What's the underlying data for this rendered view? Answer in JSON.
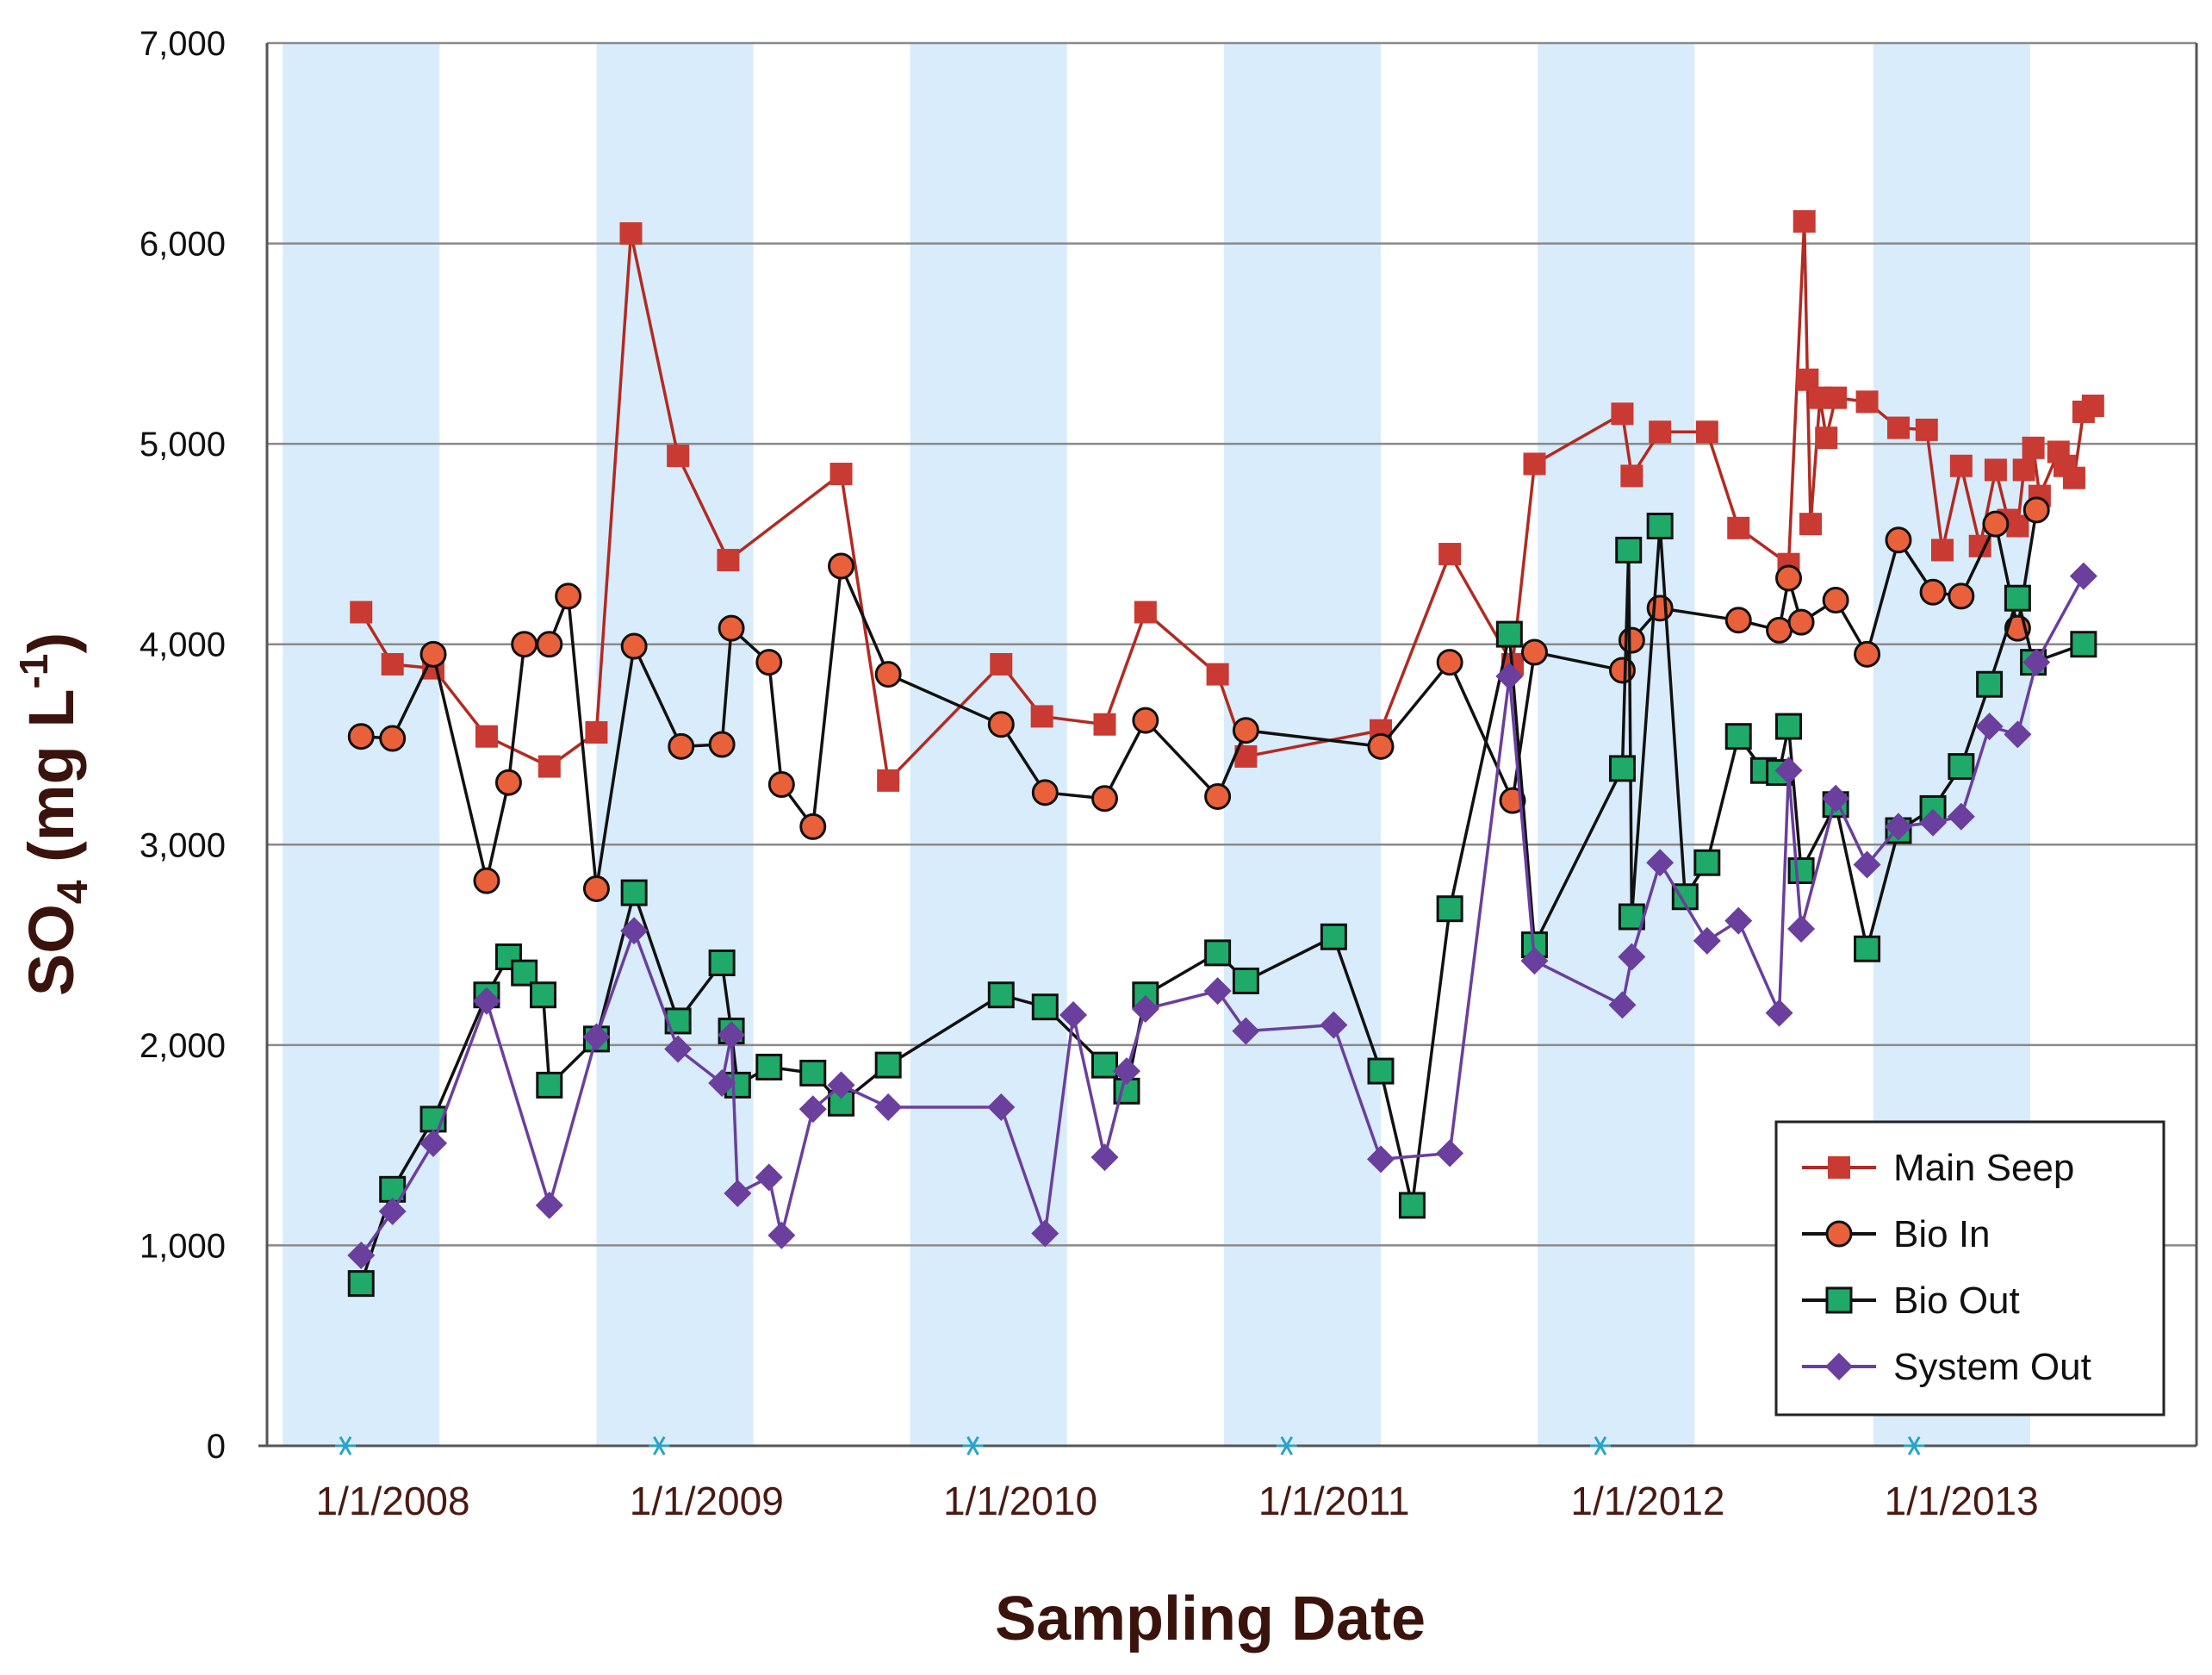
{
  "chart_data": {
    "type": "line",
    "title": "",
    "ylabel": {
      "main": "SO",
      "sub": "4",
      "unit": " (mg L",
      "sup": "-1",
      "close": ")"
    },
    "xlabel": "Sampling Date",
    "ylim": [
      0,
      7000
    ],
    "yticks": [
      0,
      1000,
      2000,
      3000,
      4000,
      5000,
      6000,
      7000
    ],
    "ytick_labels": [
      "0",
      "1,000",
      "2,000",
      "3,000",
      "4,000",
      "5,000",
      "6,000",
      "7,000"
    ],
    "xlim": [
      2007.75,
      2013.9
    ],
    "xticks": [
      2008,
      2009,
      2010,
      2011,
      2012,
      2013
    ],
    "xtick_labels": [
      "1/1/2008",
      "1/1/2009",
      "1/1/2010",
      "1/1/2011",
      "1/1/2012",
      "1/1/2013"
    ],
    "shaded_periods": [
      [
        2007.8,
        2008.3
      ],
      [
        2008.8,
        2009.3
      ],
      [
        2009.8,
        2010.3
      ],
      [
        2010.8,
        2011.3
      ],
      [
        2011.8,
        2012.3
      ],
      [
        2012.87,
        2013.37
      ]
    ],
    "gridlines": "horizontal",
    "legend_position": "bottom-right",
    "colors": {
      "shade": "#d9ecfb",
      "grid": "#8a8a8a",
      "axis": "#555555",
      "marker_star": "#2aa3c6"
    },
    "series": [
      {
        "name": "Main Seep",
        "color": "#b22a22",
        "marker": "square",
        "marker_fill": "#c83a32",
        "points": [
          [
            2008.05,
            4160
          ],
          [
            2008.15,
            3900
          ],
          [
            2008.28,
            3880
          ],
          [
            2008.45,
            3540
          ],
          [
            2008.65,
            3390
          ],
          [
            2008.8,
            3560
          ],
          [
            2008.91,
            6050
          ],
          [
            2009.06,
            4940
          ],
          [
            2009.22,
            4420
          ],
          [
            2009.58,
            4850
          ],
          [
            2009.73,
            3320
          ],
          [
            2010.09,
            3900
          ],
          [
            2010.22,
            3640
          ],
          [
            2010.42,
            3600
          ],
          [
            2010.55,
            4160
          ],
          [
            2010.78,
            3850
          ],
          [
            2010.87,
            3440
          ],
          [
            2011.3,
            3570
          ],
          [
            2011.52,
            4450
          ],
          [
            2011.72,
            3900
          ],
          [
            2011.79,
            4900
          ],
          [
            2012.07,
            5150
          ],
          [
            2012.1,
            4840
          ],
          [
            2012.19,
            5060
          ],
          [
            2012.34,
            5060
          ],
          [
            2012.44,
            4580
          ],
          [
            2012.6,
            4400
          ],
          [
            2012.65,
            6110
          ],
          [
            2012.66,
            5320
          ],
          [
            2012.67,
            4600
          ],
          [
            2012.7,
            5230
          ],
          [
            2012.72,
            5030
          ],
          [
            2012.75,
            5230
          ],
          [
            2012.85,
            5210
          ],
          [
            2012.95,
            5080
          ],
          [
            2013.04,
            5070
          ],
          [
            2013.09,
            4470
          ],
          [
            2013.15,
            4890
          ],
          [
            2013.21,
            4490
          ],
          [
            2013.26,
            4870
          ],
          [
            2013.3,
            4620
          ],
          [
            2013.33,
            4590
          ],
          [
            2013.35,
            4870
          ],
          [
            2013.38,
            4980
          ],
          [
            2013.4,
            4740
          ],
          [
            2013.46,
            4960
          ],
          [
            2013.48,
            4890
          ],
          [
            2013.51,
            4830
          ],
          [
            2013.54,
            5160
          ],
          [
            2013.57,
            5190
          ]
        ]
      },
      {
        "name": "Bio In",
        "color": "#111111",
        "marker": "circle",
        "marker_fill": "#e8613a",
        "points": [
          [
            2008.05,
            3540
          ],
          [
            2008.15,
            3530
          ],
          [
            2008.28,
            3950
          ],
          [
            2008.45,
            2820
          ],
          [
            2008.52,
            3310
          ],
          [
            2008.57,
            4000
          ],
          [
            2008.65,
            4000
          ],
          [
            2008.71,
            4240
          ],
          [
            2008.8,
            2780
          ],
          [
            2008.92,
            3990
          ],
          [
            2009.07,
            3490
          ],
          [
            2009.2,
            3500
          ],
          [
            2009.23,
            4080
          ],
          [
            2009.35,
            3910
          ],
          [
            2009.39,
            3300
          ],
          [
            2009.49,
            3090
          ],
          [
            2009.58,
            4390
          ],
          [
            2009.73,
            3850
          ],
          [
            2010.09,
            3600
          ],
          [
            2010.23,
            3260
          ],
          [
            2010.42,
            3230
          ],
          [
            2010.55,
            3620
          ],
          [
            2010.78,
            3240
          ],
          [
            2010.87,
            3570
          ],
          [
            2011.3,
            3490
          ],
          [
            2011.52,
            3910
          ],
          [
            2011.72,
            3220
          ],
          [
            2011.79,
            3960
          ],
          [
            2012.07,
            3870
          ],
          [
            2012.1,
            4020
          ],
          [
            2012.19,
            4180
          ],
          [
            2012.44,
            4120
          ],
          [
            2012.57,
            4070
          ],
          [
            2012.6,
            4330
          ],
          [
            2012.64,
            4110
          ],
          [
            2012.75,
            4220
          ],
          [
            2012.85,
            3950
          ],
          [
            2012.95,
            4520
          ],
          [
            2013.06,
            4260
          ],
          [
            2013.15,
            4240
          ],
          [
            2013.26,
            4600
          ],
          [
            2013.33,
            4080
          ],
          [
            2013.39,
            4670
          ]
        ]
      },
      {
        "name": "Bio Out",
        "color": "#111111",
        "marker": "square",
        "marker_fill": "#1faa6a",
        "points": [
          [
            2008.05,
            810
          ],
          [
            2008.15,
            1280
          ],
          [
            2008.28,
            1630
          ],
          [
            2008.45,
            2250
          ],
          [
            2008.52,
            2440
          ],
          [
            2008.57,
            2360
          ],
          [
            2008.63,
            2250
          ],
          [
            2008.65,
            1800
          ],
          [
            2008.8,
            2030
          ],
          [
            2008.92,
            2760
          ],
          [
            2009.06,
            2120
          ],
          [
            2009.2,
            2410
          ],
          [
            2009.23,
            2070
          ],
          [
            2009.25,
            1800
          ],
          [
            2009.35,
            1890
          ],
          [
            2009.49,
            1860
          ],
          [
            2009.58,
            1710
          ],
          [
            2009.73,
            1900
          ],
          [
            2010.09,
            2250
          ],
          [
            2010.23,
            2190
          ],
          [
            2010.42,
            1900
          ],
          [
            2010.49,
            1770
          ],
          [
            2010.55,
            2250
          ],
          [
            2010.78,
            2460
          ],
          [
            2010.87,
            2320
          ],
          [
            2011.15,
            2540
          ],
          [
            2011.3,
            1870
          ],
          [
            2011.4,
            1200
          ],
          [
            2011.52,
            2680
          ],
          [
            2011.71,
            4050
          ],
          [
            2011.79,
            2500
          ],
          [
            2012.07,
            3380
          ],
          [
            2012.09,
            4470
          ],
          [
            2012.1,
            2640
          ],
          [
            2012.19,
            4590
          ],
          [
            2012.27,
            2740
          ],
          [
            2012.34,
            2910
          ],
          [
            2012.44,
            3540
          ],
          [
            2012.52,
            3370
          ],
          [
            2012.57,
            3360
          ],
          [
            2012.6,
            3590
          ],
          [
            2012.64,
            2870
          ],
          [
            2012.75,
            3200
          ],
          [
            2012.85,
            2480
          ],
          [
            2012.95,
            3070
          ],
          [
            2013.06,
            3180
          ],
          [
            2013.15,
            3390
          ],
          [
            2013.24,
            3800
          ],
          [
            2013.33,
            4230
          ],
          [
            2013.38,
            3910
          ],
          [
            2013.54,
            4000
          ]
        ]
      },
      {
        "name": "System Out",
        "color": "#6a3f9e",
        "marker": "diamond",
        "marker_fill": "#6a3f9e",
        "points": [
          [
            2008.05,
            950
          ],
          [
            2008.15,
            1170
          ],
          [
            2008.28,
            1510
          ],
          [
            2008.45,
            2220
          ],
          [
            2008.65,
            1200
          ],
          [
            2008.8,
            2040
          ],
          [
            2008.92,
            2570
          ],
          [
            2009.06,
            1980
          ],
          [
            2009.2,
            1810
          ],
          [
            2009.23,
            2050
          ],
          [
            2009.25,
            1260
          ],
          [
            2009.35,
            1340
          ],
          [
            2009.39,
            1050
          ],
          [
            2009.49,
            1680
          ],
          [
            2009.58,
            1800
          ],
          [
            2009.73,
            1690
          ],
          [
            2010.09,
            1690
          ],
          [
            2010.23,
            1060
          ],
          [
            2010.32,
            2150
          ],
          [
            2010.42,
            1440
          ],
          [
            2010.49,
            1870
          ],
          [
            2010.55,
            2180
          ],
          [
            2010.78,
            2270
          ],
          [
            2010.87,
            2070
          ],
          [
            2011.15,
            2100
          ],
          [
            2011.3,
            1430
          ],
          [
            2011.52,
            1460
          ],
          [
            2011.71,
            3840
          ],
          [
            2011.79,
            2420
          ],
          [
            2012.07,
            2200
          ],
          [
            2012.1,
            2440
          ],
          [
            2012.19,
            2910
          ],
          [
            2012.34,
            2520
          ],
          [
            2012.44,
            2620
          ],
          [
            2012.57,
            2160
          ],
          [
            2012.6,
            3370
          ],
          [
            2012.64,
            2580
          ],
          [
            2012.75,
            3230
          ],
          [
            2012.85,
            2900
          ],
          [
            2012.95,
            3090
          ],
          [
            2013.06,
            3110
          ],
          [
            2013.15,
            3140
          ],
          [
            2013.24,
            3590
          ],
          [
            2013.33,
            3550
          ],
          [
            2013.39,
            3910
          ],
          [
            2013.54,
            4340
          ]
        ]
      }
    ]
  }
}
